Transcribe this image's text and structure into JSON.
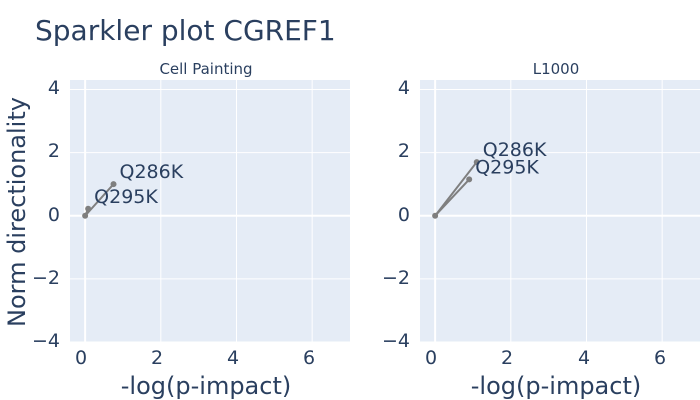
{
  "chart_data": {
    "title": "Sparkler plot CGREF1",
    "ylabel": "Norm directionality",
    "line_color": "#7f7f7f",
    "plot_background": "#e5ecf6",
    "panels": [
      {
        "subtitle": "Cell Painting",
        "type": "scatter",
        "xlabel": "-log(p-impact)",
        "xlim": [
          -0.4,
          7
        ],
        "ylim": [
          -4,
          4.3
        ],
        "x_ticks": [
          "0",
          "2",
          "4",
          "6"
        ],
        "y_ticks": [
          "4",
          "2",
          "0",
          "−2",
          "−4"
        ],
        "points": [
          {
            "label": "Q286K",
            "x": 0.75,
            "y": 1.0
          },
          {
            "label": "Q295K",
            "x": 0.08,
            "y": 0.22
          }
        ]
      },
      {
        "subtitle": "L1000",
        "type": "scatter",
        "xlabel": "-log(p-impact)",
        "xlim": [
          -0.4,
          7
        ],
        "ylim": [
          -4,
          4.3
        ],
        "x_ticks": [
          "0",
          "2",
          "4",
          "6"
        ],
        "y_ticks": [
          "4",
          "2",
          "0",
          "−2",
          "−4"
        ],
        "points": [
          {
            "label": "Q286K",
            "x": 1.1,
            "y": 1.7
          },
          {
            "label": "Q295K",
            "x": 0.9,
            "y": 1.15
          }
        ]
      }
    ]
  }
}
